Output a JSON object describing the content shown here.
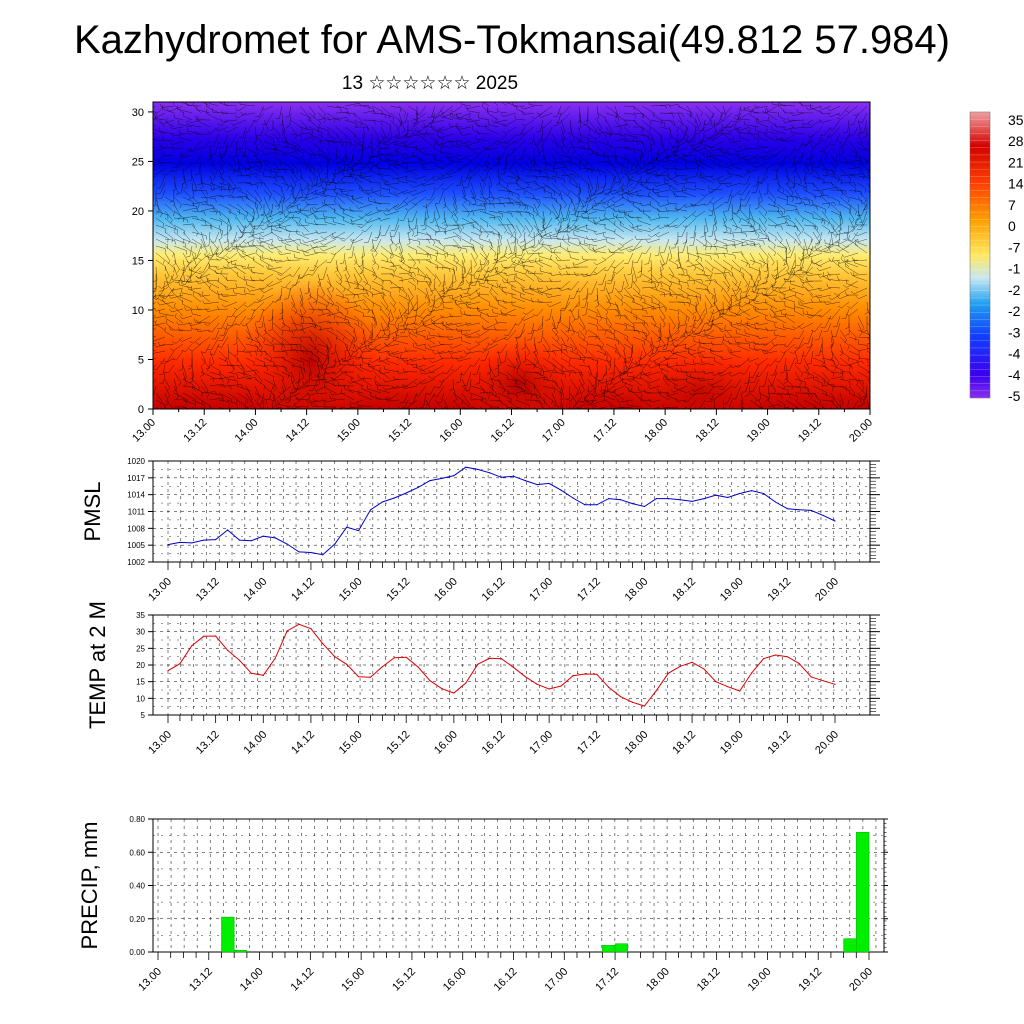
{
  "header": {
    "title": "Kazhydromet for AMS-Tokmansai(49.812 57.984)",
    "subtitle": "13 ☆☆☆☆☆☆ 2025"
  },
  "chart_data": [
    {
      "type": "heatmap",
      "panel": "temperature-cross-section",
      "x_ticks": [
        "13.00",
        "13.12",
        "14.00",
        "14.12",
        "15.00",
        "15.12",
        "16.00",
        "16.12",
        "17.00",
        "17.12",
        "18.00",
        "18.12",
        "19.00",
        "19.12",
        "20.00"
      ],
      "y_ticks": [
        "0",
        "5",
        "10",
        "15",
        "20",
        "25",
        "30"
      ],
      "ylim": [
        0,
        31
      ],
      "colorbar_labels": [
        "35",
        "28",
        "21",
        "14",
        "7",
        "0",
        "-7",
        "-1",
        "-2",
        "-2",
        "-3",
        "-4",
        "-4",
        "-5"
      ],
      "colors": {
        "hot": "#d40000",
        "warm": "#ff8c00",
        "mild": "#ffe040",
        "cool": "#a8d8f0",
        "cold": "#2060ff",
        "frigid": "#3000d0",
        "violet": "#8a2be2"
      }
    },
    {
      "type": "line",
      "panel": "pmsl",
      "ylabel": "PMSL",
      "y_ticks": [
        "1002",
        "1005",
        "1008",
        "1011",
        "1014",
        "1017",
        "1020"
      ],
      "ylim": [
        1002,
        1020
      ],
      "x_ticks": [
        "13.00",
        "13.12",
        "14.00",
        "14.12",
        "15.00",
        "15.12",
        "16.00",
        "16.12",
        "17.00",
        "17.12",
        "18.00",
        "18.12",
        "19.00",
        "19.12",
        "20.00"
      ],
      "color": "#0000cc",
      "values": [
        1005.1,
        1005.5,
        1005.4,
        1005.9,
        1006.0,
        1007.7,
        1005.9,
        1005.8,
        1006.6,
        1006.3,
        1005.2,
        1003.8,
        1003.7,
        1003.3,
        1005.2,
        1008.2,
        1007.6,
        1011.3,
        1012.7,
        1013.4,
        1014.3,
        1015.3,
        1016.5,
        1016.9,
        1017.4,
        1018.9,
        1018.5,
        1017.9,
        1017.1,
        1017.3,
        1016.5,
        1015.8,
        1016.0,
        1014.8,
        1013.4,
        1012.2,
        1012.2,
        1013.3,
        1013.1,
        1012.4,
        1011.9,
        1013.3,
        1013.3,
        1013.1,
        1012.8,
        1013.3,
        1013.9,
        1013.5,
        1014.2,
        1014.7,
        1014.2,
        1012.7,
        1011.5,
        1011.3,
        1011.2,
        1010.3,
        1009.3
      ],
      "grid": true
    },
    {
      "type": "line",
      "panel": "temp-2m",
      "ylabel": "TEMP at 2 M",
      "y_ticks": [
        "5",
        "10",
        "15",
        "20",
        "25",
        "30",
        "35"
      ],
      "ylim": [
        5,
        35
      ],
      "x_ticks": [
        "13.00",
        "13.12",
        "14.00",
        "14.12",
        "15.00",
        "15.12",
        "16.00",
        "16.12",
        "17.00",
        "17.12",
        "18.00",
        "18.12",
        "19.00",
        "19.12",
        "20.00"
      ],
      "color": "#dd0000",
      "values": [
        18.3,
        20.4,
        25.8,
        28.6,
        28.7,
        24.4,
        21.4,
        17.5,
        16.9,
        22.0,
        30.2,
        32.2,
        30.9,
        26.4,
        22.5,
        20.2,
        16.5,
        16.3,
        19.5,
        22.2,
        22.3,
        19.4,
        15.3,
        12.9,
        11.6,
        14.6,
        20.2,
        22.0,
        21.9,
        19.3,
        16.5,
        14.2,
        12.8,
        13.7,
        16.8,
        17.3,
        17.2,
        13.3,
        10.5,
        8.8,
        7.7,
        12.3,
        17.5,
        19.6,
        20.8,
        18.8,
        15.0,
        13.5,
        12.2,
        17.6,
        21.9,
        23.0,
        22.5,
        20.4,
        16.4,
        15.3,
        14.2
      ],
      "grid": true
    },
    {
      "type": "bar",
      "panel": "precip",
      "ylabel": "PRECIP, mm",
      "y_ticks": [
        "0.00",
        "0.20",
        "0.40",
        "0.60",
        "0.80"
      ],
      "ylim": [
        0,
        0.8
      ],
      "x_ticks": [
        "13.00",
        "13.12",
        "14.00",
        "14.12",
        "15.00",
        "15.12",
        "16.00",
        "16.12",
        "17.00",
        "17.12",
        "18.00",
        "18.12",
        "19.00",
        "19.12",
        "20.00"
      ],
      "color": "#00ee00",
      "values": [
        0,
        0,
        0,
        0,
        0,
        0.21,
        0.01,
        0,
        0,
        0,
        0,
        0,
        0,
        0,
        0,
        0,
        0,
        0,
        0,
        0,
        0,
        0,
        0,
        0,
        0,
        0,
        0,
        0,
        0,
        0,
        0,
        0,
        0,
        0,
        0,
        0.04,
        0.05,
        0,
        0,
        0,
        0,
        0,
        0,
        0,
        0,
        0,
        0,
        0,
        0,
        0,
        0,
        0,
        0,
        0,
        0.08,
        0.72
      ],
      "grid": true
    }
  ]
}
